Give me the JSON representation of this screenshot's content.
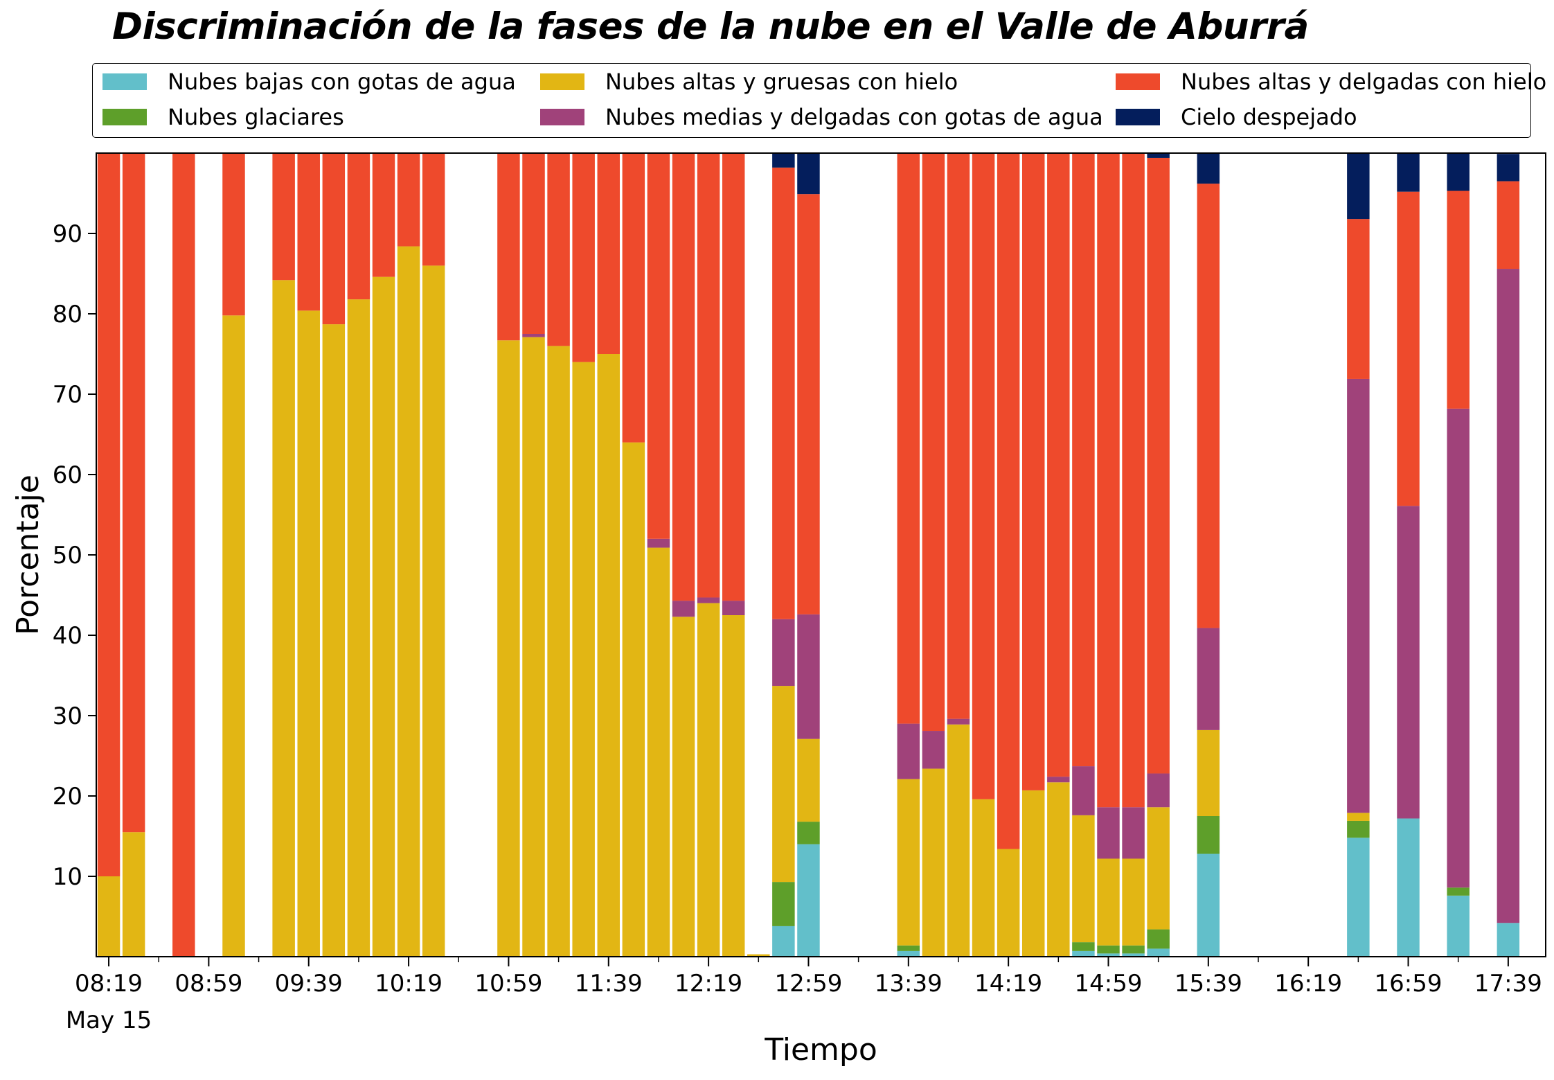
{
  "chart_data": {
    "type": "bar",
    "stacked": true,
    "title": "Discriminación de la fases de la nube en el Valle de Aburrá",
    "xlabel": "Tiempo",
    "ylabel": "Porcentaje",
    "ylim": [
      0,
      100
    ],
    "yticks": [
      10,
      20,
      30,
      40,
      50,
      60,
      70,
      80,
      90
    ],
    "x_tick_labels": [
      "08:19",
      "08:59",
      "09:39",
      "10:19",
      "10:59",
      "11:39",
      "12:19",
      "12:59",
      "13:39",
      "14:19",
      "14:59",
      "15:39",
      "16:19",
      "16:59",
      "17:39"
    ],
    "x_sublabel": "May 15",
    "grid": false,
    "legend_position": "top, above plot",
    "categories": [
      "08:19",
      "08:29",
      "08:49",
      "09:09",
      "09:29",
      "09:39",
      "09:49",
      "09:59",
      "10:09",
      "10:19",
      "10:29",
      "10:59",
      "11:09",
      "11:19",
      "11:29",
      "11:39",
      "11:49",
      "11:59",
      "12:09",
      "12:19",
      "12:29",
      "12:39",
      "12:49",
      "12:59",
      "13:39",
      "13:49",
      "13:59",
      "14:09",
      "14:19",
      "14:29",
      "14:39",
      "14:49",
      "14:59",
      "15:09",
      "15:19",
      "15:39",
      "16:39",
      "16:59",
      "17:19",
      "17:39"
    ],
    "series": [
      {
        "name": "Nubes bajas con gotas de agua",
        "color": "#62BFCA",
        "values": [
          0,
          0,
          0,
          0,
          0,
          0,
          0,
          0,
          0,
          0,
          0,
          0,
          0,
          0,
          0,
          0,
          0,
          0,
          0,
          0,
          0,
          0,
          3.8,
          14,
          0.7,
          0,
          0,
          0,
          0,
          0,
          0,
          0.7,
          0.4,
          0.4,
          1,
          12.8,
          14.8,
          17.2,
          7.6,
          4.2
        ]
      },
      {
        "name": "Nubes glaciares",
        "color": "#5E9F2A",
        "values": [
          0,
          0,
          0,
          0,
          0,
          0,
          0,
          0,
          0,
          0,
          0,
          0,
          0,
          0,
          0,
          0,
          0,
          0,
          0,
          0,
          0,
          0,
          5.5,
          2.8,
          0.7,
          0,
          0,
          0,
          0,
          0,
          0,
          1.1,
          1,
          1,
          2.4,
          4.7,
          2.1,
          0,
          1,
          0
        ]
      },
      {
        "name": "Nubes altas y gruesas con hielo",
        "color": "#E2B614",
        "values": [
          10,
          15.5,
          0,
          79.8,
          84.2,
          80.4,
          78.7,
          81.8,
          84.6,
          88.4,
          86,
          76.7,
          77.1,
          76,
          74,
          75,
          64,
          50.9,
          42.3,
          44,
          42.5,
          0.3,
          24.4,
          10.3,
          20.7,
          23.4,
          28.9,
          19.6,
          13.4,
          20.7,
          21.7,
          15.8,
          10.8,
          10.8,
          15.2,
          10.7,
          1,
          0,
          0,
          0
        ]
      },
      {
        "name": "Nubes medias y delgadas con gotas de agua",
        "color": "#A0427A",
        "values": [
          0,
          0,
          0,
          0,
          0,
          0,
          0,
          0,
          0,
          0,
          0,
          0,
          0.4,
          0,
          0,
          0,
          0,
          1.1,
          2,
          0.7,
          1.8,
          0,
          8.3,
          15.5,
          6.9,
          4.7,
          0.7,
          0,
          0,
          0,
          0.7,
          6.1,
          6.4,
          6.4,
          4.2,
          12.7,
          54,
          38.9,
          59.6,
          81.4
        ]
      },
      {
        "name": "Nubes altas y delgadas con hielo",
        "color": "#EE4A2C",
        "values": [
          90,
          84.5,
          100,
          20.2,
          15.8,
          19.6,
          21.3,
          18.2,
          15.4,
          11.6,
          14,
          23.3,
          22.5,
          24,
          26,
          25,
          36,
          48,
          55.7,
          55.3,
          55.7,
          0,
          56.2,
          52.3,
          71,
          71.9,
          70.4,
          80.4,
          86.6,
          79.3,
          77.6,
          76.3,
          81.4,
          81.4,
          76.6,
          55.3,
          19.9,
          39.1,
          27.1,
          10.9
        ]
      },
      {
        "name": "Cielo despejado",
        "color": "#041E5C",
        "values": [
          0,
          0,
          0,
          0,
          0,
          0,
          0,
          0,
          0,
          0,
          0,
          0,
          0,
          0,
          0,
          0,
          0,
          0,
          0,
          0,
          0,
          0,
          1.8,
          5.1,
          0,
          0,
          0,
          0,
          0,
          0,
          0,
          0,
          0,
          0,
          0.6,
          3.8,
          8.2,
          4.8,
          4.8,
          3.4
        ]
      }
    ]
  }
}
